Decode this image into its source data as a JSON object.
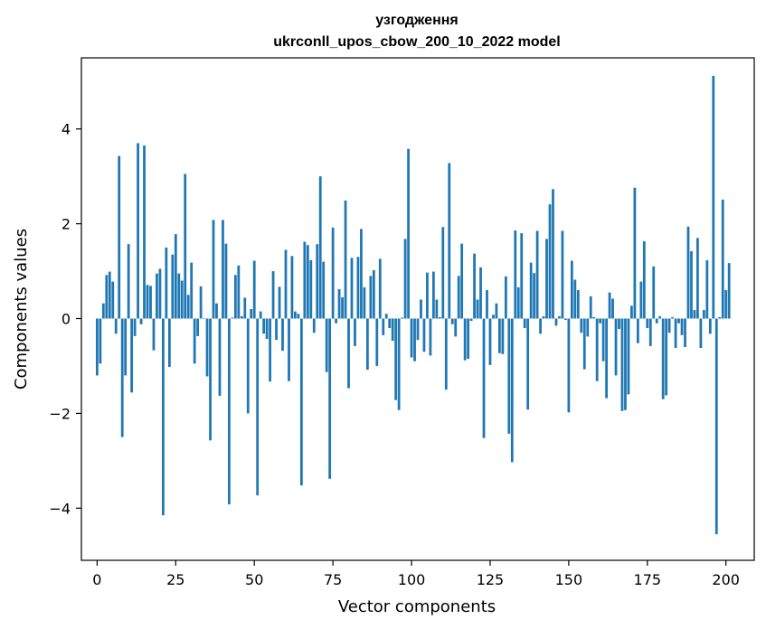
{
  "chart_data": {
    "type": "bar",
    "title": "узгодження",
    "subtitle": "ukrconll_upos_cbow_200_10_2022 model",
    "xlabel": "Vector components",
    "ylabel": "Components values",
    "xlim": [
      -5,
      209
    ],
    "ylim": [
      -5.1,
      5.5
    ],
    "xticks": [
      0,
      25,
      50,
      75,
      100,
      125,
      150,
      175,
      200
    ],
    "yticks": [
      -4,
      -2,
      0,
      2,
      4
    ],
    "grid": false,
    "bar_color": "#1f77b4",
    "values": [
      -1.2,
      -0.95,
      0.32,
      0.92,
      0.99,
      0.78,
      -0.32,
      3.43,
      -2.5,
      -1.2,
      1.57,
      -1.56,
      -0.37,
      3.7,
      -0.12,
      3.65,
      0.71,
      0.69,
      -0.67,
      0.95,
      1.05,
      -4.15,
      1.5,
      -1.02,
      1.35,
      1.78,
      0.95,
      0.8,
      3.05,
      0.5,
      1.18,
      -0.95,
      -0.37,
      0.68,
      0.01,
      -1.22,
      -2.57,
      2.08,
      0.32,
      -1.63,
      2.08,
      1.58,
      -3.92,
      0.02,
      0.92,
      1.12,
      0.05,
      0.44,
      -2.0,
      0.2,
      1.22,
      -3.73,
      0.15,
      -0.32,
      -0.43,
      -1.33,
      1.0,
      -0.45,
      0.67,
      -0.68,
      1.45,
      -1.32,
      1.32,
      0.15,
      0.1,
      -3.52,
      1.62,
      1.55,
      1.23,
      -0.3,
      1.57,
      3.0,
      1.2,
      -1.13,
      -3.38,
      1.92,
      -0.1,
      0.62,
      0.45,
      2.49,
      -1.47,
      1.28,
      -0.58,
      1.3,
      1.89,
      0.66,
      -1.08,
      0.9,
      1.02,
      -1.0,
      1.26,
      -0.35,
      0.1,
      -0.2,
      -0.47,
      -1.72,
      -1.93,
      0.02,
      1.68,
      3.58,
      -0.82,
      -0.9,
      -0.45,
      0.4,
      -0.7,
      0.97,
      -0.78,
      0.99,
      0.4,
      0.03,
      1.93,
      -1.5,
      3.28,
      -0.12,
      -0.38,
      0.9,
      1.58,
      -0.88,
      -0.85,
      -0.05,
      1.37,
      0.4,
      1.08,
      -2.52,
      0.6,
      -0.98,
      0.08,
      0.32,
      -0.73,
      -0.75,
      0.89,
      -2.43,
      -3.03,
      1.86,
      0.66,
      1.8,
      -0.2,
      -1.92,
      1.18,
      0.96,
      1.85,
      -0.32,
      0.05,
      1.68,
      2.41,
      2.73,
      -0.15,
      0.05,
      1.85,
      -0.03,
      -1.98,
      1.22,
      0.82,
      0.6,
      -0.3,
      -1.07,
      -0.38,
      0.47,
      0.03,
      -1.32,
      -0.1,
      -0.9,
      -1.68,
      0.55,
      0.42,
      -1.2,
      -0.22,
      -1.95,
      -1.93,
      -1.6,
      0.27,
      2.76,
      -0.52,
      0.78,
      1.63,
      -0.2,
      -0.58,
      1.1,
      -0.1,
      0.05,
      -1.7,
      -1.62,
      -0.3,
      0.03,
      -0.62,
      -0.1,
      -0.35,
      -0.6,
      1.94,
      1.42,
      0.18,
      1.7,
      -0.62,
      0.18,
      1.23,
      -0.32,
      5.12,
      -4.55,
      0.03,
      2.51,
      0.6,
      1.17
    ]
  }
}
